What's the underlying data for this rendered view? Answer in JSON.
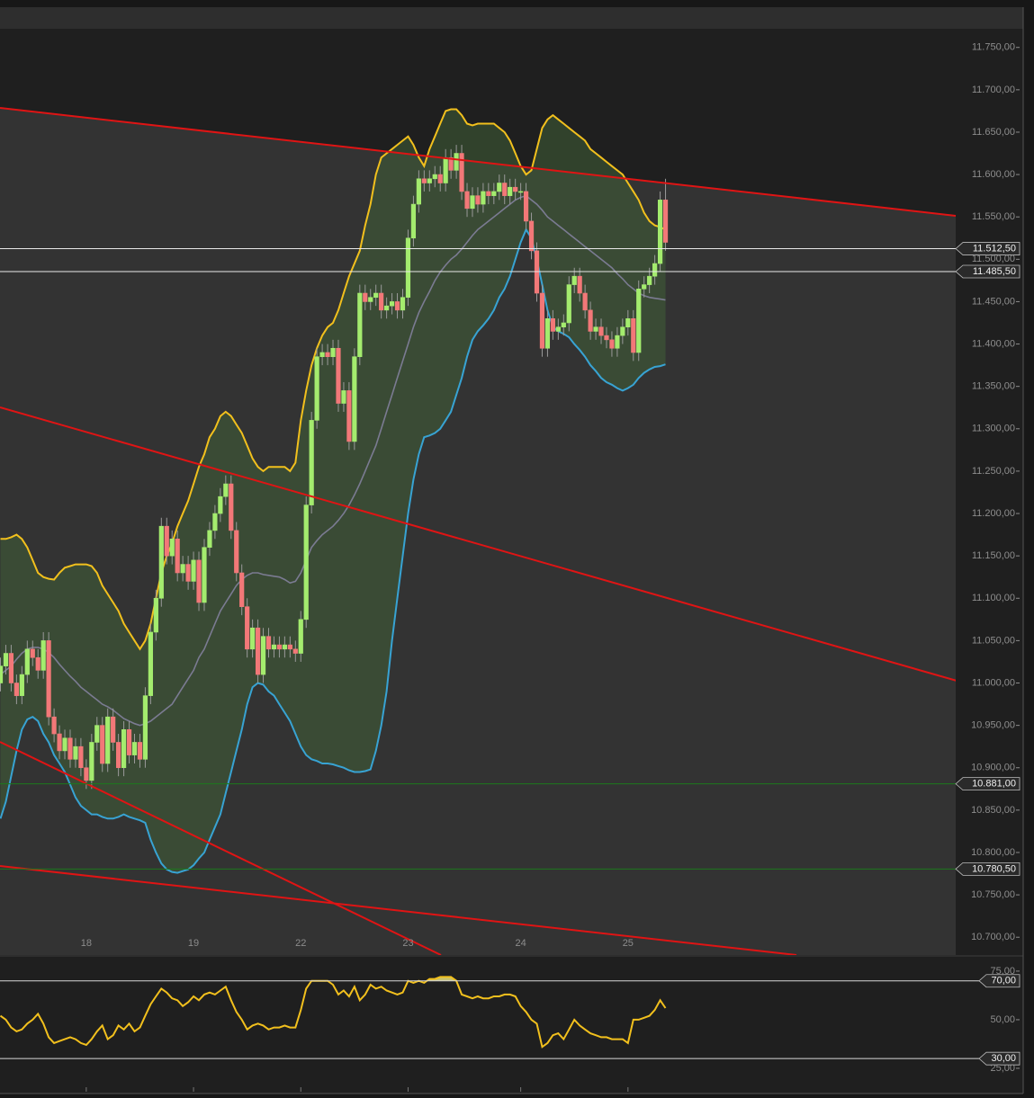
{
  "chart_data": {
    "type": "candlestick",
    "categories": [
      null,
      null,
      null,
      null,
      null,
      null,
      null,
      null,
      null,
      null,
      null,
      null,
      null,
      null,
      null,
      null,
      "18",
      null,
      null,
      null,
      null,
      null,
      null,
      null,
      null,
      null,
      null,
      null,
      null,
      null,
      null,
      null,
      null,
      null,
      null,
      null,
      "19",
      null,
      null,
      null,
      null,
      null,
      null,
      null,
      null,
      null,
      null,
      null,
      null,
      null,
      null,
      null,
      null,
      null,
      null,
      null,
      "22",
      null,
      null,
      null,
      null,
      null,
      null,
      null,
      null,
      null,
      null,
      null,
      null,
      null,
      null,
      null,
      null,
      null,
      null,
      null,
      "23",
      null,
      null,
      null,
      null,
      null,
      null,
      null,
      null,
      null,
      null,
      null,
      null,
      null,
      null,
      null,
      null,
      null,
      null,
      null,
      null,
      "24",
      null,
      null,
      null,
      null,
      null,
      null,
      null,
      null,
      null,
      null,
      null,
      null,
      null,
      null,
      null,
      null,
      null,
      null,
      null,
      "25",
      null,
      null,
      null,
      null,
      null,
      null,
      null
    ],
    "open": [
      11000,
      11020,
      11035,
      11000,
      10985,
      11010,
      11040,
      11030,
      11015,
      11050,
      10960,
      10940,
      10920,
      10935,
      10910,
      10925,
      10900,
      10885,
      10930,
      10950,
      10905,
      10960,
      10930,
      10900,
      10945,
      10915,
      10930,
      10910,
      10985,
      11060,
      11100,
      11185,
      11150,
      11170,
      11130,
      11140,
      11120,
      11145,
      11095,
      11160,
      11180,
      11200,
      11220,
      11235,
      11180,
      11130,
      11090,
      11040,
      11065,
      11010,
      11055,
      11040,
      11045,
      11040,
      11045,
      11040,
      11035,
      11075,
      11210,
      11310,
      11385,
      11390,
      11385,
      11395,
      11330,
      11345,
      11285,
      11385,
      11460,
      11450,
      11455,
      11460,
      11440,
      11445,
      11450,
      11440,
      11455,
      11525,
      11565,
      11595,
      11590,
      11595,
      11600,
      11590,
      11620,
      11605,
      11625,
      11580,
      11560,
      11575,
      11565,
      11580,
      11575,
      11580,
      11590,
      11575,
      11585,
      11580,
      11580,
      11545,
      11510,
      11460,
      11395,
      11430,
      11415,
      11420,
      11425,
      11470,
      11480,
      11460,
      11440,
      11415,
      11420,
      11410,
      11405,
      11395,
      11410,
      11420,
      11430,
      11390,
      11465,
      11470,
      11480,
      11495,
      11570
    ],
    "high": [
      11030,
      11045,
      11045,
      11010,
      11020,
      11050,
      11050,
      11040,
      11060,
      11060,
      10970,
      10950,
      10945,
      10945,
      10935,
      10935,
      10910,
      10940,
      10960,
      10960,
      10970,
      10970,
      10940,
      10955,
      10955,
      10940,
      10940,
      10995,
      11070,
      11110,
      11195,
      11195,
      11180,
      11180,
      11150,
      11150,
      11155,
      11155,
      11170,
      11190,
      11210,
      11230,
      11245,
      11245,
      11190,
      11140,
      11100,
      11075,
      11075,
      11065,
      11065,
      11055,
      11055,
      11055,
      11055,
      11050,
      11085,
      11220,
      11320,
      11395,
      11400,
      11400,
      11405,
      11405,
      11355,
      11355,
      11395,
      11470,
      11470,
      11465,
      11470,
      11470,
      11455,
      11460,
      11460,
      11465,
      11535,
      11575,
      11605,
      11605,
      11605,
      11610,
      11610,
      11630,
      11630,
      11635,
      11635,
      11590,
      11585,
      11585,
      11590,
      11590,
      11590,
      11600,
      11600,
      11595,
      11595,
      11590,
      11590,
      11555,
      11520,
      11470,
      11440,
      11440,
      11430,
      11435,
      11480,
      11490,
      11490,
      11470,
      11450,
      11430,
      11430,
      11420,
      11415,
      11420,
      11430,
      11440,
      11440,
      11475,
      11480,
      11490,
      11505,
      11580,
      11595
    ],
    "low": [
      10990,
      11010,
      10990,
      10975,
      10975,
      11000,
      11020,
      11005,
      11005,
      10950,
      10930,
      10910,
      10910,
      10900,
      10900,
      10890,
      10875,
      10875,
      10920,
      10895,
      10895,
      10920,
      10890,
      10890,
      10905,
      10905,
      10900,
      10900,
      10975,
      11050,
      11090,
      11140,
      11140,
      11120,
      11120,
      11110,
      11110,
      11085,
      11085,
      11150,
      11170,
      11190,
      11210,
      11170,
      11120,
      11080,
      11030,
      11030,
      11000,
      11000,
      11030,
      11030,
      11030,
      11030,
      11030,
      11025,
      11025,
      11065,
      11200,
      11300,
      11375,
      11375,
      11375,
      11320,
      11320,
      11275,
      11275,
      11375,
      11440,
      11440,
      11445,
      11430,
      11430,
      11435,
      11430,
      11430,
      11445,
      11515,
      11555,
      11580,
      11580,
      11585,
      11580,
      11580,
      11595,
      11595,
      11570,
      11550,
      11550,
      11555,
      11555,
      11565,
      11565,
      11570,
      11565,
      11565,
      11570,
      11570,
      11535,
      11500,
      11450,
      11385,
      11385,
      11405,
      11405,
      11410,
      11415,
      11460,
      11450,
      11430,
      11405,
      11405,
      11400,
      11395,
      11385,
      11385,
      11400,
      11410,
      11380,
      11380,
      11455,
      11460,
      11470,
      11485,
      11510
    ],
    "close": [
      11020,
      11035,
      11000,
      10985,
      11010,
      11040,
      11030,
      11015,
      11050,
      10960,
      10940,
      10920,
      10935,
      10910,
      10925,
      10900,
      10885,
      10930,
      10950,
      10905,
      10960,
      10930,
      10900,
      10945,
      10915,
      10930,
      10910,
      10985,
      11060,
      11100,
      11185,
      11150,
      11170,
      11130,
      11140,
      11120,
      11145,
      11095,
      11160,
      11180,
      11200,
      11220,
      11235,
      11180,
      11130,
      11090,
      11040,
      11065,
      11010,
      11055,
      11040,
      11045,
      11040,
      11045,
      11040,
      11035,
      11075,
      11210,
      11310,
      11385,
      11390,
      11385,
      11395,
      11330,
      11345,
      11285,
      11385,
      11460,
      11450,
      11455,
      11460,
      11440,
      11445,
      11450,
      11440,
      11455,
      11525,
      11565,
      11595,
      11590,
      11595,
      11600,
      11590,
      11620,
      11605,
      11625,
      11580,
      11560,
      11575,
      11565,
      11580,
      11575,
      11580,
      11590,
      11575,
      11585,
      11580,
      11580,
      11545,
      11510,
      11460,
      11395,
      11430,
      11415,
      11420,
      11425,
      11470,
      11480,
      11460,
      11440,
      11415,
      11420,
      11410,
      11405,
      11395,
      11410,
      11420,
      11430,
      11390,
      11465,
      11470,
      11480,
      11495,
      11570,
      11520
    ],
    "bands": {
      "upper": [
        11170,
        11170,
        11172,
        11175,
        11170,
        11160,
        11145,
        11130,
        11125,
        11123,
        11122,
        11130,
        11136,
        11138,
        11140,
        11140,
        11140,
        11138,
        11130,
        11115,
        11105,
        11095,
        11085,
        11070,
        11060,
        11050,
        11040,
        11050,
        11070,
        11100,
        11130,
        11150,
        11165,
        11185,
        11200,
        11215,
        11235,
        11255,
        11270,
        11290,
        11300,
        11315,
        11320,
        11315,
        11305,
        11295,
        11280,
        11265,
        11255,
        11250,
        11255,
        11255,
        11255,
        11255,
        11250,
        11260,
        11310,
        11345,
        11375,
        11395,
        11410,
        11420,
        11425,
        11440,
        11460,
        11480,
        11495,
        11510,
        11540,
        11565,
        11600,
        11620,
        11625,
        11630,
        11635,
        11640,
        11645,
        11635,
        11620,
        11610,
        11630,
        11645,
        11660,
        11675,
        11677,
        11677,
        11670,
        11660,
        11658,
        11660,
        11660,
        11660,
        11660,
        11655,
        11650,
        11640,
        11625,
        11610,
        11600,
        11605,
        11630,
        11655,
        11665,
        11670,
        11665,
        11660,
        11655,
        11650,
        11645,
        11640,
        11630,
        11625,
        11620,
        11615,
        11610,
        11605,
        11600,
        11590,
        11580,
        11570,
        11555,
        11545,
        11540,
        11538,
        11535
      ],
      "middle": [
        11010,
        11015,
        11020,
        11028,
        11035,
        11040,
        11042,
        11042,
        11040,
        11036,
        11030,
        11022,
        11015,
        11008,
        11002,
        10995,
        10990,
        10985,
        10980,
        10975,
        10972,
        10968,
        10963,
        10958,
        10955,
        10952,
        10950,
        10952,
        10955,
        10960,
        10965,
        10970,
        10975,
        10985,
        10995,
        11005,
        11015,
        11030,
        11040,
        11055,
        11070,
        11085,
        11095,
        11105,
        11115,
        11122,
        11127,
        11130,
        11130,
        11128,
        11127,
        11126,
        11125,
        11122,
        11118,
        11120,
        11130,
        11145,
        11160,
        11168,
        11175,
        11180,
        11185,
        11192,
        11200,
        11210,
        11222,
        11235,
        11250,
        11265,
        11280,
        11300,
        11320,
        11340,
        11360,
        11380,
        11400,
        11420,
        11437,
        11450,
        11462,
        11475,
        11485,
        11493,
        11500,
        11505,
        11512,
        11520,
        11528,
        11535,
        11540,
        11545,
        11550,
        11555,
        11560,
        11565,
        11570,
        11573,
        11575,
        11570,
        11565,
        11558,
        11550,
        11545,
        11540,
        11535,
        11530,
        11525,
        11520,
        11515,
        11510,
        11505,
        11500,
        11495,
        11490,
        11483,
        11477,
        11470,
        11465,
        11460,
        11457,
        11455,
        11454,
        11453,
        11452
      ],
      "lower": [
        10840,
        10860,
        10890,
        10920,
        10945,
        10957,
        10960,
        10955,
        10940,
        10930,
        10915,
        10905,
        10895,
        10880,
        10865,
        10855,
        10850,
        10845,
        10845,
        10842,
        10840,
        10840,
        10842,
        10845,
        10842,
        10840,
        10838,
        10835,
        10815,
        10800,
        10787,
        10780,
        10777,
        10776,
        10778,
        10780,
        10785,
        10793,
        10800,
        10815,
        10830,
        10845,
        10870,
        10895,
        10920,
        10945,
        10975,
        10995,
        11000,
        10998,
        10990,
        10985,
        10975,
        10965,
        10955,
        10940,
        10925,
        10915,
        10910,
        10908,
        10905,
        10905,
        10904,
        10902,
        10900,
        10897,
        10895,
        10895,
        10896,
        10898,
        10920,
        10950,
        10990,
        11050,
        11100,
        11150,
        11200,
        11240,
        11270,
        11290,
        11292,
        11295,
        11300,
        11310,
        11320,
        11340,
        11360,
        11385,
        11405,
        11415,
        11422,
        11430,
        11440,
        11455,
        11465,
        11480,
        11500,
        11520,
        11535,
        11525,
        11500,
        11470,
        11440,
        11420,
        11415,
        11412,
        11408,
        11400,
        11393,
        11385,
        11375,
        11368,
        11360,
        11355,
        11352,
        11348,
        11345,
        11348,
        11352,
        11360,
        11366,
        11370,
        11373,
        11374,
        11376
      ]
    },
    "ylim": [
      10679,
      11772
    ],
    "yticks": [
      {
        "value": 10700,
        "label": "10.700,00"
      },
      {
        "value": 10750,
        "label": "10.750,00"
      },
      {
        "value": 10800,
        "label": "10.800,00"
      },
      {
        "value": 10850,
        "label": "10.850,00"
      },
      {
        "value": 10900,
        "label": "10.900,00"
      },
      {
        "value": 10950,
        "label": "10.950,00"
      },
      {
        "value": 11000,
        "label": "11.000,00"
      },
      {
        "value": 11050,
        "label": "11.050,00"
      },
      {
        "value": 11100,
        "label": "11.100,00"
      },
      {
        "value": 11150,
        "label": "11.150,00"
      },
      {
        "value": 11200,
        "label": "11.200,00"
      },
      {
        "value": 11250,
        "label": "11.250,00"
      },
      {
        "value": 11300,
        "label": "11.300,00"
      },
      {
        "value": 11350,
        "label": "11.350,00"
      },
      {
        "value": 11400,
        "label": "11.400,00"
      },
      {
        "value": 11450,
        "label": "11.450,00"
      },
      {
        "value": 11500,
        "label": "11.500,00"
      },
      {
        "value": 11550,
        "label": "11.550,00"
      },
      {
        "value": 11600,
        "label": "11.600,00"
      },
      {
        "value": 11650,
        "label": "11.650,00"
      },
      {
        "value": 11700,
        "label": "11.700,00"
      },
      {
        "value": 11750,
        "label": "11.750,00"
      }
    ],
    "levels": [
      {
        "value": 11512.5,
        "label": "11.512,50",
        "color": "#e8e8e8"
      },
      {
        "value": 11485.5,
        "label": "11.485,50",
        "color": "#e8e8e8"
      },
      {
        "value": 10881,
        "label": "10.881,00",
        "color": "#1d7a1d"
      },
      {
        "value": 10780.5,
        "label": "10.780,50",
        "color": "#1d7a1d"
      }
    ],
    "colors": {
      "up": "#a4ec6e",
      "down": "#f27878",
      "upper": "#f2c01d",
      "middle": "#7b7b92",
      "lower": "#38a3d3",
      "band_fill": "#3f5e36"
    },
    "rsi": {
      "values": [
        52,
        50,
        46,
        44,
        45,
        48,
        50,
        53,
        48,
        41,
        38,
        39,
        40,
        41,
        40,
        38,
        37,
        40,
        44,
        47,
        40,
        42,
        47,
        45,
        48,
        44,
        46,
        52,
        58,
        62,
        66,
        64,
        61,
        60,
        57,
        59,
        62,
        60,
        63,
        64,
        63,
        65,
        67,
        60,
        54,
        50,
        45,
        47,
        48,
        47,
        45,
        46,
        46,
        47,
        46,
        46,
        55,
        66,
        70,
        70,
        70,
        70,
        68,
        63,
        65,
        62,
        67,
        60,
        63,
        68,
        66,
        67,
        65,
        64,
        63,
        64,
        70,
        69,
        70,
        69,
        71,
        71,
        72,
        72,
        72,
        70,
        63,
        62,
        61,
        62,
        61,
        61,
        62,
        62,
        63,
        63,
        62,
        57,
        54,
        50,
        48,
        36,
        38,
        42,
        43,
        40,
        45,
        50,
        47,
        45,
        43,
        42,
        41,
        41,
        40,
        40,
        40,
        38,
        50,
        50,
        51,
        52,
        55,
        60,
        56
      ],
      "color": "#f2c01d",
      "ylim": [
        12.5,
        81.9
      ],
      "yticks": [
        {
          "value": 25,
          "label": "25,00"
        },
        {
          "value": 50,
          "label": "50,00"
        },
        {
          "value": 75,
          "label": "75,00"
        }
      ],
      "levels": [
        {
          "value": 70,
          "label": "70,00"
        },
        {
          "value": 30,
          "label": "30,00"
        }
      ]
    }
  }
}
